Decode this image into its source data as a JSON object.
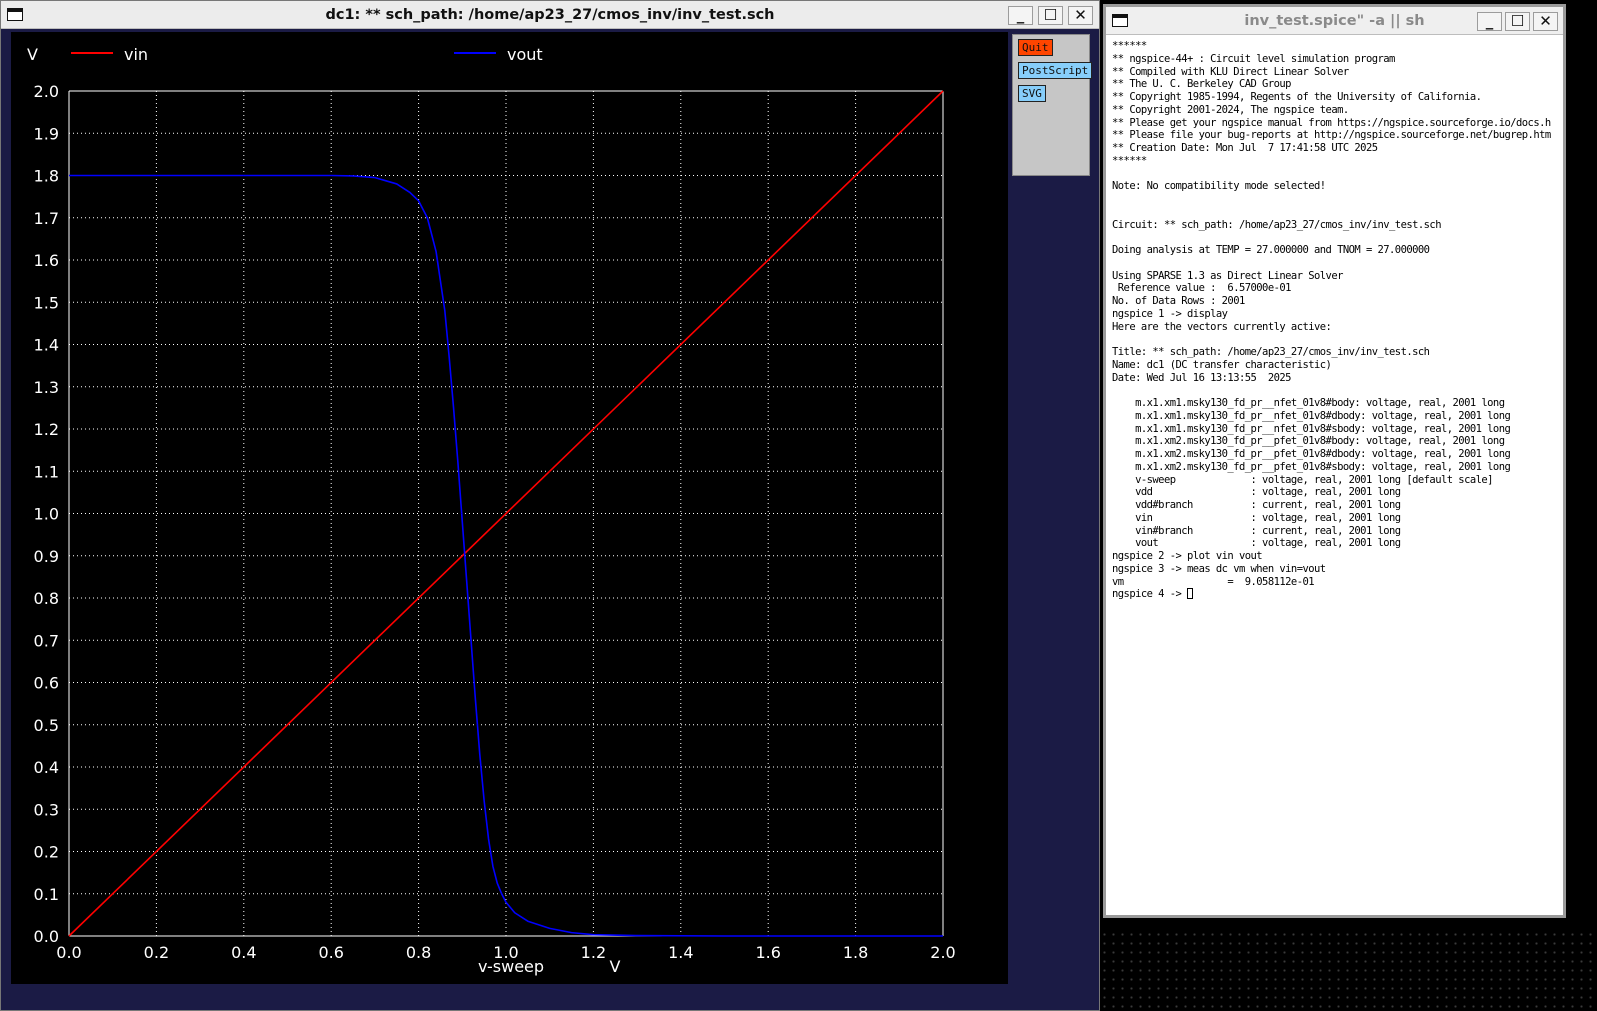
{
  "plot_window": {
    "title": "dc1: ** sch_path: /home/ap23_27/cmos_inv/inv_test.sch",
    "buttons": {
      "quit": "Quit",
      "postscript": "PostScript",
      "svg": "SVG"
    }
  },
  "terminal_window": {
    "title": "inv_test.spice\" -a || sh",
    "lines": [
      "******",
      "** ngspice-44+ : Circuit level simulation program",
      "** Compiled with KLU Direct Linear Solver",
      "** The U. C. Berkeley CAD Group",
      "** Copyright 1985-1994, Regents of the University of California.",
      "** Copyright 2001-2024, The ngspice team.",
      "** Please get your ngspice manual from https://ngspice.sourceforge.io/docs.h",
      "** Please file your bug-reports at http://ngspice.sourceforge.net/bugrep.htm",
      "** Creation Date: Mon Jul  7 17:41:58 UTC 2025",
      "******",
      "",
      "Note: No compatibility mode selected!",
      "",
      "",
      "Circuit: ** sch_path: /home/ap23_27/cmos_inv/inv_test.sch",
      "",
      "Doing analysis at TEMP = 27.000000 and TNOM = 27.000000",
      "",
      "Using SPARSE 1.3 as Direct Linear Solver",
      " Reference value :  6.57000e-01",
      "No. of Data Rows : 2001",
      "ngspice 1 -> display",
      "Here are the vectors currently active:",
      "",
      "Title: ** sch_path: /home/ap23_27/cmos_inv/inv_test.sch",
      "Name: dc1 (DC transfer characteristic)",
      "Date: Wed Jul 16 13:13:55  2025",
      "",
      "    m.x1.xm1.msky130_fd_pr__nfet_01v8#body: voltage, real, 2001 long",
      "    m.x1.xm1.msky130_fd_pr__nfet_01v8#dbody: voltage, real, 2001 long",
      "    m.x1.xm1.msky130_fd_pr__nfet_01v8#sbody: voltage, real, 2001 long",
      "    m.x1.xm2.msky130_fd_pr__pfet_01v8#body: voltage, real, 2001 long",
      "    m.x1.xm2.msky130_fd_pr__pfet_01v8#dbody: voltage, real, 2001 long",
      "    m.x1.xm2.msky130_fd_pr__pfet_01v8#sbody: voltage, real, 2001 long",
      "    v-sweep             : voltage, real, 2001 long [default scale]",
      "    vdd                 : voltage, real, 2001 long",
      "    vdd#branch          : current, real, 2001 long",
      "    vin                 : voltage, real, 2001 long",
      "    vin#branch          : current, real, 2001 long",
      "    vout                : voltage, real, 2001 long",
      "ngspice 2 -> plot vin vout",
      "ngspice 3 -> meas dc vm when vin=vout",
      "vm                  =  9.058112e-01"
    ],
    "prompt": "ngspice 4 -> "
  },
  "chart_data": {
    "type": "line",
    "title": "",
    "xlabel": "v-sweep",
    "xunit": "V",
    "yunit": "V",
    "xlim": [
      0.0,
      2.0
    ],
    "ylim": [
      0.0,
      2.0
    ],
    "xticks": [
      "0.0",
      "0.2",
      "0.4",
      "0.6",
      "0.8",
      "1.0",
      "1.2",
      "1.4",
      "1.6",
      "1.8",
      "2.0"
    ],
    "yticks": [
      "0.0",
      "0.1",
      "0.2",
      "0.3",
      "0.4",
      "0.5",
      "0.6",
      "0.7",
      "0.8",
      "0.9",
      "1.0",
      "1.1",
      "1.2",
      "1.3",
      "1.4",
      "1.5",
      "1.6",
      "1.7",
      "1.8",
      "1.9",
      "2.0"
    ],
    "grid": true,
    "legend_position": "top",
    "series": [
      {
        "name": "vin",
        "color": "#ff0000",
        "x": [
          0.0,
          2.0
        ],
        "y": [
          0.0,
          2.0
        ]
      },
      {
        "name": "vout",
        "color": "#0000ff",
        "x": [
          0.0,
          0.6,
          0.65,
          0.7,
          0.75,
          0.78,
          0.8,
          0.82,
          0.84,
          0.86,
          0.87,
          0.88,
          0.89,
          0.9,
          0.91,
          0.92,
          0.93,
          0.94,
          0.95,
          0.96,
          0.97,
          0.98,
          0.99,
          1.0,
          1.02,
          1.05,
          1.1,
          1.15,
          1.2,
          1.3,
          1.5,
          2.0
        ],
        "y": [
          1.8,
          1.8,
          1.799,
          1.795,
          1.78,
          1.76,
          1.74,
          1.7,
          1.62,
          1.48,
          1.37,
          1.25,
          1.12,
          0.98,
          0.84,
          0.7,
          0.56,
          0.43,
          0.32,
          0.23,
          0.165,
          0.125,
          0.1,
          0.08,
          0.055,
          0.035,
          0.018,
          0.008,
          0.003,
          0.001,
          0.0,
          0.0
        ]
      }
    ]
  }
}
